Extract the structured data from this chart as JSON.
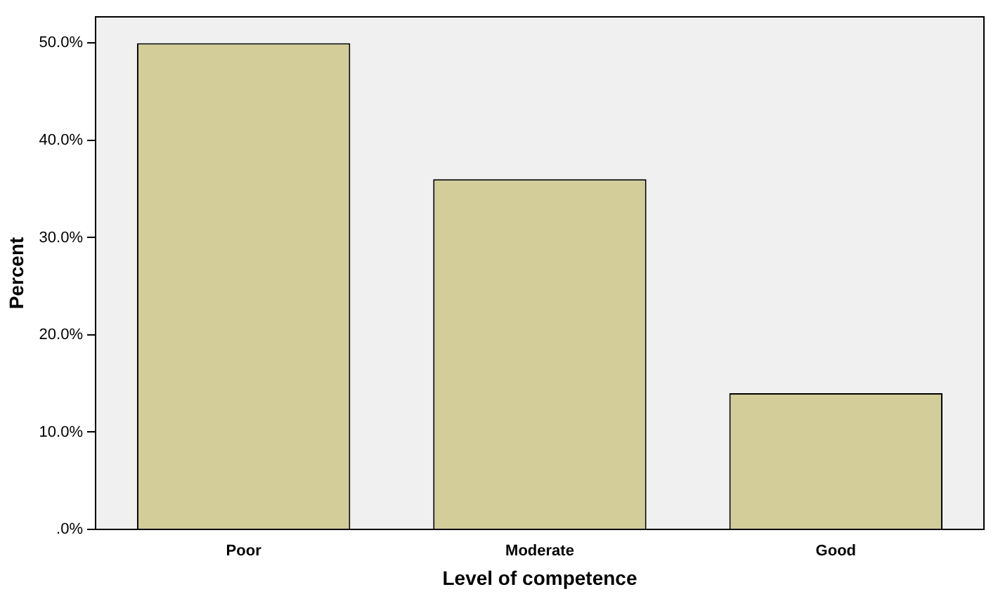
{
  "chart_data": {
    "type": "bar",
    "xlabel": "Level of competence",
    "ylabel": "Percent",
    "categories": [
      "Poor",
      "Moderate",
      "Good"
    ],
    "values": [
      50,
      36,
      14
    ],
    "color": "#d3cd99",
    "ylim": [
      0,
      52.7
    ],
    "yticks": [
      {
        "value": 0,
        "label": ".0%"
      },
      {
        "value": 10,
        "label": "10.0%"
      },
      {
        "value": 20,
        "label": "20.0%"
      },
      {
        "value": 30,
        "label": "30.0%"
      },
      {
        "value": 40,
        "label": "40.0%"
      },
      {
        "value": 50,
        "label": "50.0%"
      }
    ],
    "grid": false,
    "legend": false
  }
}
